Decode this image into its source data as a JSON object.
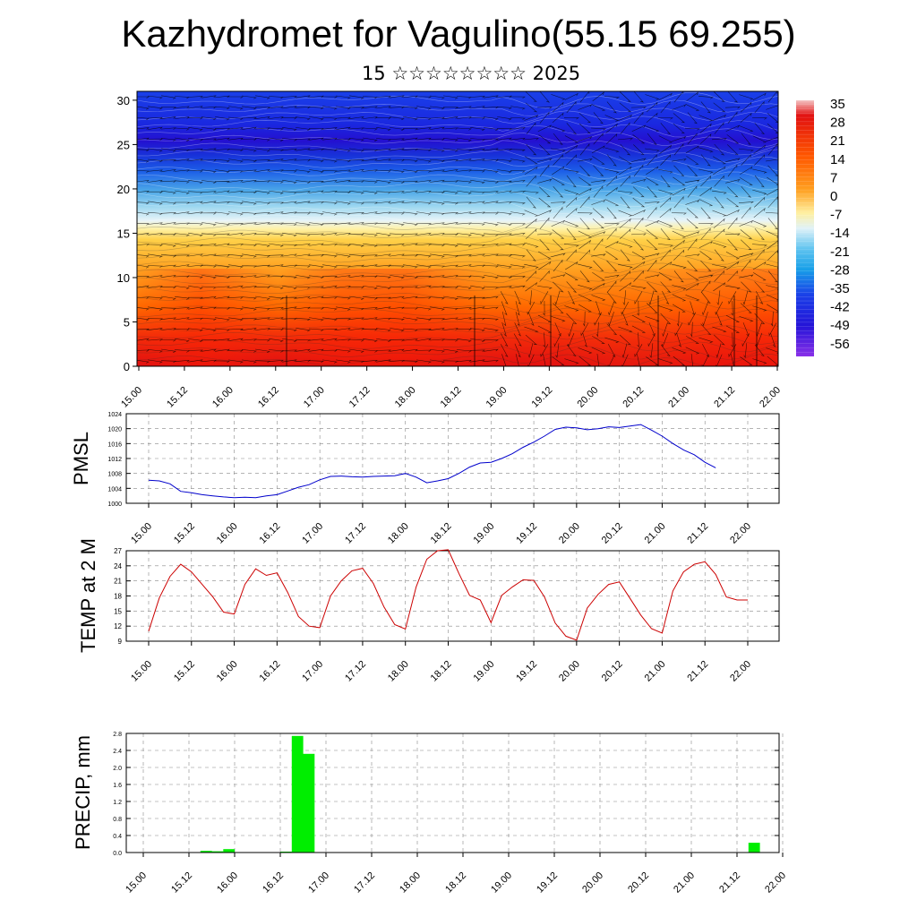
{
  "title": "Kazhydromet for Vagulino(55.15 69.255)",
  "subtitle": "15 ☆☆☆☆☆☆☆☆ 2025",
  "x_tick_labels": [
    "15.00",
    "15.12",
    "16.00",
    "16.12",
    "17.00",
    "17.12",
    "18.00",
    "18.12",
    "19.00",
    "19.12",
    "20.00",
    "20.12",
    "21.00",
    "21.12",
    "22.00"
  ],
  "chart_data": [
    {
      "type": "heatmap",
      "title": "",
      "xlabel": "",
      "ylabel": "",
      "x": [
        "15.00",
        "15.12",
        "16.00",
        "16.12",
        "17.00",
        "17.12",
        "18.00",
        "18.12",
        "19.00",
        "19.12",
        "20.00",
        "20.12",
        "21.00",
        "21.12",
        "22.00"
      ],
      "ylim": [
        0,
        31
      ],
      "y_ticks": [
        0,
        5,
        10,
        15,
        20,
        25,
        30
      ],
      "colorbar": {
        "labels": [
          "35",
          "28",
          "21",
          "14",
          "7",
          "0",
          "-7",
          "-14",
          "-21",
          "-28",
          "-35",
          "-42",
          "-49",
          "-56"
        ],
        "range": [
          -63,
          37
        ],
        "colors_top_to_bottom": [
          "#f2bcbc",
          "#e21010",
          "#ff6a00",
          "#ffd048",
          "#fff8b8",
          "#bde8f8",
          "#22a8e8",
          "#1c3ce8",
          "#2a10d8",
          "#8a30e8"
        ]
      },
      "overlay": "wind barbs / arrows",
      "temperature_bands": [
        {
          "height_range": [
            0,
            5
          ],
          "value": 30,
          "description": "near-surface red maxima"
        },
        {
          "height_range": [
            15,
            16
          ],
          "value": -12,
          "description": "transition to cold above"
        },
        {
          "height_range": [
            22,
            30
          ],
          "value": -50,
          "description": "cold upper layers"
        }
      ]
    },
    {
      "type": "line",
      "ylabel": "PMSL",
      "ylim": [
        1000,
        1024
      ],
      "y_ticks": [
        "1000",
        "1004",
        "1008",
        "1012",
        "1016",
        "1020",
        "1024"
      ],
      "color": "#0000cc",
      "x_start": 0,
      "x_step_hours": 3,
      "values": [
        1006.2,
        1006.0,
        1005.2,
        1003.2,
        1002.8,
        1002.3,
        1002.0,
        1001.7,
        1001.5,
        1001.6,
        1001.5,
        1002.0,
        1002.3,
        1003.3,
        1004.3,
        1005.0,
        1006.3,
        1007.2,
        1007.3,
        1007.1,
        1007.0,
        1007.2,
        1007.3,
        1007.4,
        1008.0,
        1007.0,
        1005.5,
        1006.0,
        1006.6,
        1008.0,
        1009.7,
        1010.8,
        1011.0,
        1012.0,
        1013.3,
        1015.0,
        1016.4,
        1018.0,
        1019.8,
        1020.4,
        1020.2,
        1019.7,
        1020.0,
        1020.5,
        1020.3,
        1020.7,
        1021.1,
        1019.6,
        1018.0,
        1016.0,
        1014.3,
        1013.0,
        1011.0,
        1009.5
      ]
    },
    {
      "type": "line",
      "ylabel": "TEMP at 2 M",
      "ylim": [
        9,
        27
      ],
      "y_ticks": [
        "9",
        "12",
        "15",
        "18",
        "21",
        "24",
        "27"
      ],
      "color": "#cc0000",
      "x_start": 0,
      "x_step_hours": 3,
      "values": [
        11.0,
        17.6,
        21.9,
        24.3,
        22.8,
        20.3,
        17.8,
        14.8,
        14.4,
        20.3,
        23.4,
        22.1,
        22.6,
        18.7,
        13.9,
        12.0,
        11.7,
        18.0,
        21.0,
        23.0,
        23.5,
        20.5,
        15.8,
        12.3,
        11.4,
        19.8,
        25.3,
        27.0,
        27.2,
        22.5,
        18.1,
        17.2,
        12.7,
        18.1,
        19.8,
        21.2,
        21.1,
        17.8,
        12.6,
        10.0,
        9.2,
        15.6,
        18.3,
        20.3,
        20.8,
        17.5,
        14.2,
        11.5,
        10.6,
        19.0,
        22.8,
        24.3,
        24.8,
        22.3,
        17.8,
        17.2,
        17.2
      ]
    },
    {
      "type": "bar",
      "ylabel": "PRECIP, mm",
      "ylim": [
        0,
        2.8
      ],
      "y_ticks": [
        "0.0",
        "0.4",
        "0.8",
        "1.2",
        "1.6",
        "2.0",
        "2.4",
        "2.8"
      ],
      "color": "#00ee00",
      "bar_width_hours": 3,
      "bars": [
        {
          "t": 15,
          "value": 0.04
        },
        {
          "t": 18,
          "value": 0.03
        },
        {
          "t": 21,
          "value": 0.08
        },
        {
          "t": 36,
          "value": 0.02
        },
        {
          "t": 39,
          "value": 2.74
        },
        {
          "t": 42,
          "value": 2.32
        },
        {
          "t": 96,
          "value": 0.01
        },
        {
          "t": 159,
          "value": 0.23
        }
      ]
    }
  ]
}
